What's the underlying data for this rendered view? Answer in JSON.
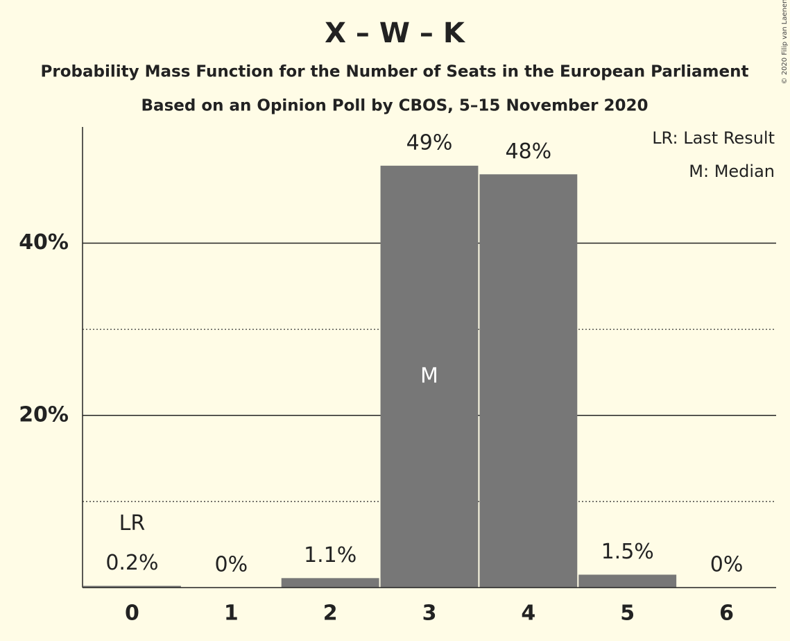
{
  "chart_data": {
    "type": "bar",
    "title": "X – W – K",
    "subtitles": [
      "Probability Mass Function for the Number of Seats in the European Parliament",
      "Based on an Opinion Poll by CBOS, 5–15 November 2020"
    ],
    "categories": [
      "0",
      "1",
      "2",
      "3",
      "4",
      "5",
      "6"
    ],
    "values": [
      0.2,
      0,
      1.1,
      49,
      48,
      1.5,
      0
    ],
    "value_labels": [
      "0.2%",
      "0%",
      "1.1%",
      "49%",
      "48%",
      "1.5%",
      "0%"
    ],
    "color": "#777777",
    "ylim": [
      0,
      53.5
    ],
    "yticks": [
      {
        "value": 20,
        "label": "20%"
      },
      {
        "value": 40,
        "label": "40%"
      }
    ],
    "minor_yticks": [
      10,
      30
    ],
    "grid": true,
    "last_result": {
      "label": "LR",
      "category": "0"
    },
    "median": {
      "label": "M",
      "category": "3"
    },
    "legend": [
      "LR: Last Result",
      "M: Median"
    ],
    "copyright": "© 2020 Filip van Laenen"
  }
}
